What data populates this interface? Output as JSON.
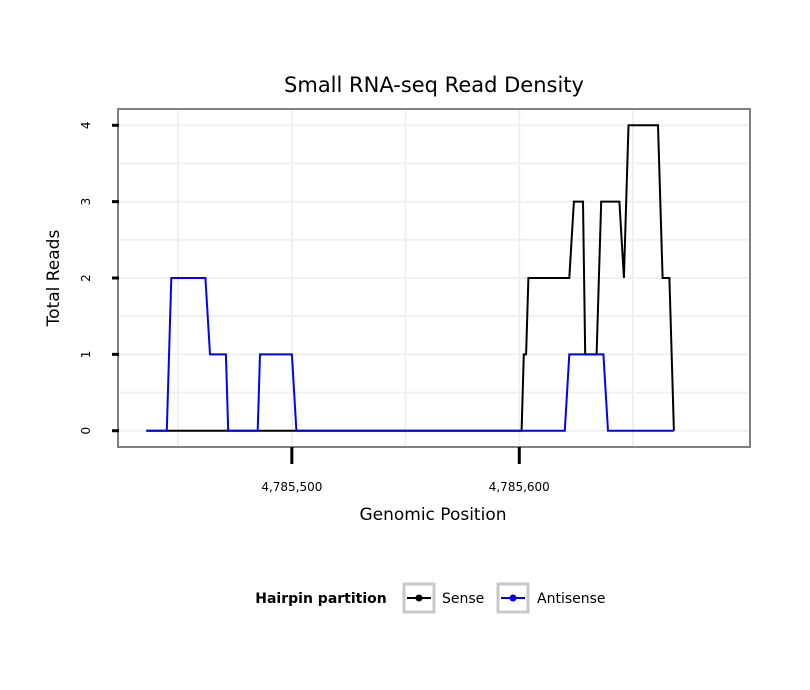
{
  "chart_data": {
    "type": "line",
    "title": "Small RNA-seq Read Density",
    "xlabel": "Genomic Position",
    "ylabel": "Total Reads",
    "xlim": [
      4785424,
      4785701
    ],
    "ylim": [
      -0.2,
      4.2
    ],
    "x_ticks": [
      {
        "value": 4785500,
        "label": "4,785,500"
      },
      {
        "value": 4785600,
        "label": "4,785,600"
      }
    ],
    "y_ticks": [
      {
        "value": 0,
        "label": "0"
      },
      {
        "value": 1,
        "label": "1"
      },
      {
        "value": 2,
        "label": "2"
      },
      {
        "value": 3,
        "label": "3"
      },
      {
        "value": 4,
        "label": "4"
      }
    ],
    "x_gridlines": [
      4785450,
      4785500,
      4785550,
      4785600,
      4785650
    ],
    "y_gridlines": [
      0,
      0.5,
      1,
      1.5,
      2,
      2.5,
      3,
      3.5,
      4
    ],
    "legend": {
      "title": "Hairpin partition",
      "position": "bottom",
      "entries": [
        {
          "name": "Sense",
          "color": "#000000"
        },
        {
          "name": "Antisense",
          "color": "#0000ff"
        }
      ]
    },
    "series": [
      {
        "name": "Sense",
        "color": "#000000",
        "points": [
          [
            4785436,
            0
          ],
          [
            4785601,
            0
          ],
          [
            4785602,
            1
          ],
          [
            4785603,
            1
          ],
          [
            4785604,
            2
          ],
          [
            4785622,
            2
          ],
          [
            4785624,
            3
          ],
          [
            4785628,
            3
          ],
          [
            4785629,
            1
          ],
          [
            4785634,
            1
          ],
          [
            4785636,
            3
          ],
          [
            4785644,
            3
          ],
          [
            4785646,
            2
          ],
          [
            4785648,
            4
          ],
          [
            4785661,
            4
          ],
          [
            4785663,
            2
          ],
          [
            4785666,
            2
          ],
          [
            4785668,
            0
          ]
        ]
      },
      {
        "name": "Antisense",
        "color": "#0000ff",
        "points": [
          [
            4785436,
            0
          ],
          [
            4785445,
            0
          ],
          [
            4785447,
            2
          ],
          [
            4785462,
            2
          ],
          [
            4785464,
            1
          ],
          [
            4785471,
            1
          ],
          [
            4785472,
            0
          ],
          [
            4785485,
            0
          ],
          [
            4785486,
            1
          ],
          [
            4785500,
            1
          ],
          [
            4785502,
            0
          ],
          [
            4785620,
            0
          ],
          [
            4785622,
            1
          ],
          [
            4785637,
            1
          ],
          [
            4785639,
            0
          ],
          [
            4785668,
            0
          ]
        ]
      }
    ]
  }
}
